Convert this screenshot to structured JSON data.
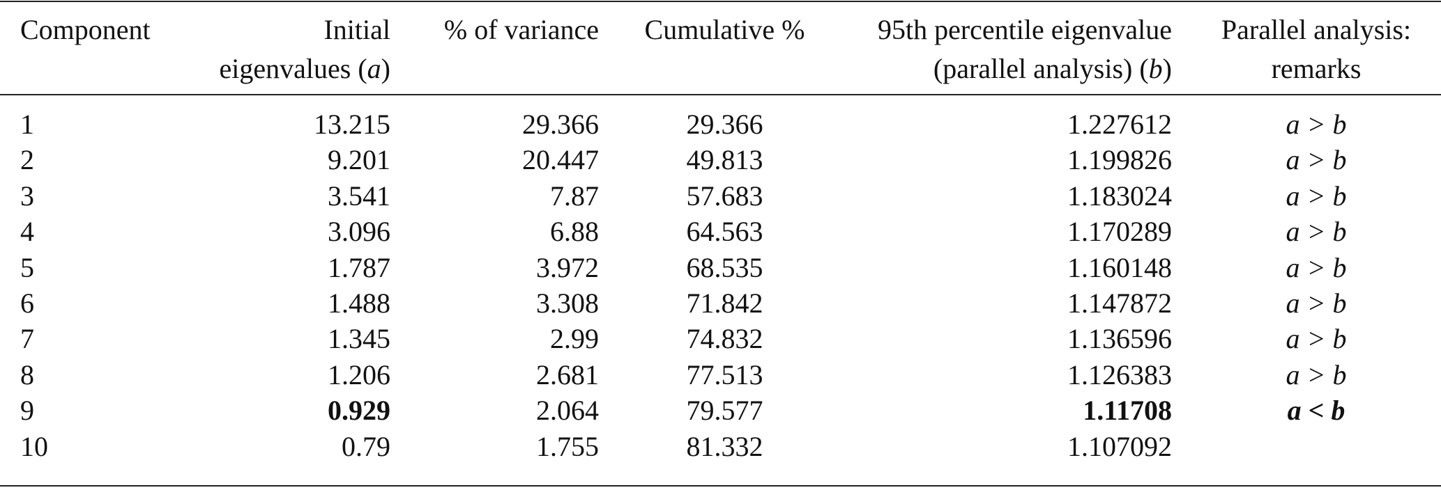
{
  "headers": {
    "component": "Component",
    "initial_l1": "Initial",
    "initial_l2": "eigenvalues (",
    "initial_var": "a",
    "initial_close": ")",
    "variance": "% of variance",
    "cumulative": "Cumulative %",
    "pctl_l1": "95th percentile eigenvalue",
    "pctl_l2": "(parallel analysis) (",
    "pctl_var": "b",
    "pctl_close": ")",
    "remarks_l1": "Parallel analysis:",
    "remarks_l2": "remarks"
  },
  "rows": [
    {
      "component": "1",
      "initial": "13.215",
      "variance": "29.366",
      "cumulative": "29.366",
      "pctl": "1.227612",
      "remark": "a > b",
      "bold": false
    },
    {
      "component": "2",
      "initial": "9.201",
      "variance": "20.447",
      "cumulative": "49.813",
      "pctl": "1.199826",
      "remark": "a > b",
      "bold": false
    },
    {
      "component": "3",
      "initial": "3.541",
      "variance": "7.87",
      "cumulative": "57.683",
      "pctl": "1.183024",
      "remark": "a > b",
      "bold": false
    },
    {
      "component": "4",
      "initial": "3.096",
      "variance": "6.88",
      "cumulative": "64.563",
      "pctl": "1.170289",
      "remark": "a > b",
      "bold": false
    },
    {
      "component": "5",
      "initial": "1.787",
      "variance": "3.972",
      "cumulative": "68.535",
      "pctl": "1.160148",
      "remark": "a > b",
      "bold": false
    },
    {
      "component": "6",
      "initial": "1.488",
      "variance": "3.308",
      "cumulative": "71.842",
      "pctl": "1.147872",
      "remark": "a > b",
      "bold": false
    },
    {
      "component": "7",
      "initial": "1.345",
      "variance": "2.99",
      "cumulative": "74.832",
      "pctl": "1.136596",
      "remark": "a > b",
      "bold": false
    },
    {
      "component": "8",
      "initial": "1.206",
      "variance": "2.681",
      "cumulative": "77.513",
      "pctl": "1.126383",
      "remark": "a > b",
      "bold": false
    },
    {
      "component": "9",
      "initial": "0.929",
      "variance": "2.064",
      "cumulative": "79.577",
      "pctl": "1.11708",
      "remark": "a < b",
      "bold": true
    },
    {
      "component": "10",
      "initial": "0.79",
      "variance": "1.755",
      "cumulative": "81.332",
      "pctl": "1.107092",
      "remark": "",
      "bold": false
    }
  ]
}
